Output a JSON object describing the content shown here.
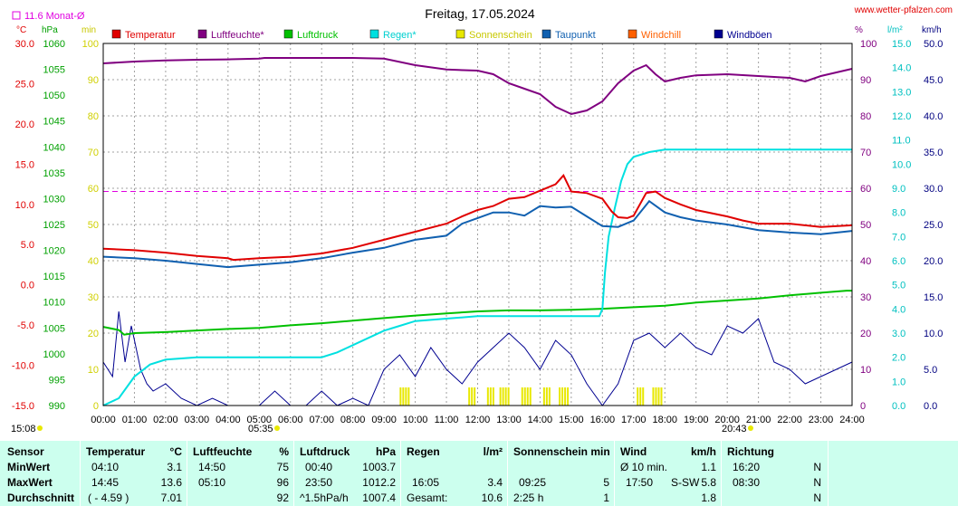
{
  "header": {
    "title": "Freitag, 17.05.2024",
    "site": "www.wetter-pfalzen.com",
    "monthly_avg_label": "11.6 Monat-Ø"
  },
  "axes": {
    "left_units": [
      "°C",
      "hPa",
      "min"
    ],
    "right_units": [
      "%",
      "l/m²",
      "km/h"
    ],
    "temp_ticks": [
      "30.0",
      "25.0",
      "20.0",
      "15.0",
      "10.0",
      "5.0",
      "0.0",
      "-5.0",
      "-10.0",
      "-15.0"
    ],
    "hpa_ticks": [
      "1060",
      "1055",
      "1050",
      "1045",
      "1040",
      "1035",
      "1030",
      "1025",
      "1020",
      "1015",
      "1010",
      "1005",
      "1000",
      "995",
      "990"
    ],
    "min_ticks": [
      "100",
      "90",
      "80",
      "70",
      "60",
      "50",
      "40",
      "30",
      "20",
      "10",
      "0"
    ],
    "pct_ticks": [
      "100",
      "90",
      "80",
      "70",
      "60",
      "50",
      "40",
      "30",
      "20",
      "10",
      "0"
    ],
    "rain_ticks": [
      "15.0",
      "14.0",
      "13.0",
      "12.0",
      "11.0",
      "10.0",
      "9.0",
      "8.0",
      "7.0",
      "6.0",
      "5.0",
      "4.0",
      "3.0",
      "2.0",
      "1.0",
      "0.0"
    ],
    "kmh_ticks": [
      "50.0",
      "45.0",
      "40.0",
      "35.0",
      "30.0",
      "25.0",
      "20.0",
      "15.0",
      "10.0",
      "5.0",
      "0.0"
    ],
    "x_ticks": [
      "00:00",
      "01:00",
      "02:00",
      "03:00",
      "04:00",
      "05:00",
      "06:00",
      "07:00",
      "08:00",
      "09:00",
      "10:00",
      "11:00",
      "12:00",
      "13:00",
      "14:00",
      "15:00",
      "16:00",
      "17:00",
      "18:00",
      "19:00",
      "20:00",
      "21:00",
      "22:00",
      "23:00",
      "24:00"
    ],
    "sunrise": "05:35",
    "sunset": "20:43",
    "time_label": "15:08"
  },
  "legend": [
    {
      "label": "Temperatur",
      "color": "#e00000"
    },
    {
      "label": "Luftfeuchte*",
      "color": "#800080"
    },
    {
      "label": "Luftdruck",
      "color": "#00c000"
    },
    {
      "label": "Regen*",
      "color": "#00e0e0"
    },
    {
      "label": "Sonnenschein",
      "color": "#e8e800"
    },
    {
      "label": "Taupunkt",
      "color": "#1060b0"
    },
    {
      "label": "Windchill",
      "color": "#ff6000"
    },
    {
      "label": "Windböen",
      "color": "#000090"
    }
  ],
  "chart_data": {
    "type": "line",
    "title": "Freitag, 17.05.2024",
    "x_range_hours": [
      0,
      24
    ],
    "temp_range": [
      -15,
      30
    ],
    "humidity_range": [
      0,
      100
    ],
    "pressure_range": [
      990,
      1060
    ],
    "rain_range": [
      0,
      15
    ],
    "wind_range": [
      0,
      50
    ],
    "sunshine_range_min": [
      0,
      100
    ],
    "monthly_avg_temp": 11.6,
    "series": [
      {
        "name": "Temperatur",
        "unit": "°C",
        "color": "#e00000",
        "points": [
          [
            0,
            4.5
          ],
          [
            1,
            4.3
          ],
          [
            2,
            4.0
          ],
          [
            3,
            3.6
          ],
          [
            4,
            3.3
          ],
          [
            4.17,
            3.1
          ],
          [
            5,
            3.3
          ],
          [
            6,
            3.5
          ],
          [
            7,
            3.9
          ],
          [
            8,
            4.6
          ],
          [
            9,
            5.6
          ],
          [
            10,
            6.6
          ],
          [
            11,
            7.6
          ],
          [
            11.5,
            8.5
          ],
          [
            12,
            9.3
          ],
          [
            12.5,
            9.8
          ],
          [
            13,
            10.7
          ],
          [
            13.5,
            10.9
          ],
          [
            14,
            11.7
          ],
          [
            14.5,
            12.5
          ],
          [
            14.75,
            13.6
          ],
          [
            15,
            11.6
          ],
          [
            15.5,
            11.4
          ],
          [
            16,
            10.7
          ],
          [
            16.3,
            9.1
          ],
          [
            16.5,
            8.4
          ],
          [
            16.8,
            8.3
          ],
          [
            17,
            8.6
          ],
          [
            17.4,
            11.4
          ],
          [
            17.7,
            11.6
          ],
          [
            18,
            10.8
          ],
          [
            18.5,
            10.0
          ],
          [
            19,
            9.3
          ],
          [
            20,
            8.5
          ],
          [
            20.5,
            8.0
          ],
          [
            21,
            7.6
          ],
          [
            22,
            7.6
          ],
          [
            23,
            7.2
          ],
          [
            24,
            7.4
          ]
        ]
      },
      {
        "name": "Luftfeuchte*",
        "unit": "%",
        "color": "#800080",
        "points": [
          [
            0,
            94.5
          ],
          [
            1,
            95
          ],
          [
            2,
            95.3
          ],
          [
            3,
            95.5
          ],
          [
            4,
            95.6
          ],
          [
            5,
            95.8
          ],
          [
            5.17,
            96
          ],
          [
            6,
            96
          ],
          [
            7,
            96
          ],
          [
            8,
            96
          ],
          [
            9,
            95.8
          ],
          [
            10,
            94
          ],
          [
            11,
            92.8
          ],
          [
            12,
            92.5
          ],
          [
            12.5,
            91.5
          ],
          [
            13,
            89
          ],
          [
            13.5,
            87.5
          ],
          [
            14,
            86
          ],
          [
            14.5,
            82.5
          ],
          [
            15,
            80.5
          ],
          [
            15.5,
            81.5
          ],
          [
            16,
            84
          ],
          [
            16.5,
            89
          ],
          [
            17,
            92.5
          ],
          [
            17.4,
            94
          ],
          [
            17.7,
            91.5
          ],
          [
            18,
            89.5
          ],
          [
            18.5,
            90.5
          ],
          [
            19,
            91.2
          ],
          [
            20,
            91.5
          ],
          [
            21,
            91
          ],
          [
            22,
            90.5
          ],
          [
            22.5,
            89.5
          ],
          [
            23,
            91
          ],
          [
            24,
            93
          ]
        ]
      },
      {
        "name": "Luftdruck",
        "unit": "hPa",
        "color": "#00c000",
        "points": [
          [
            0,
            1005.2
          ],
          [
            0.5,
            1004.6
          ],
          [
            0.67,
            1003.7
          ],
          [
            1,
            1004.0
          ],
          [
            2,
            1004.2
          ],
          [
            3,
            1004.5
          ],
          [
            4,
            1004.8
          ],
          [
            5,
            1005.0
          ],
          [
            6,
            1005.5
          ],
          [
            7,
            1005.9
          ],
          [
            8,
            1006.4
          ],
          [
            9,
            1006.9
          ],
          [
            10,
            1007.4
          ],
          [
            11,
            1007.8
          ],
          [
            12,
            1008.2
          ],
          [
            13,
            1008.4
          ],
          [
            14,
            1008.4
          ],
          [
            15,
            1008.5
          ],
          [
            16,
            1008.7
          ],
          [
            17,
            1009.0
          ],
          [
            18,
            1009.3
          ],
          [
            19,
            1009.9
          ],
          [
            20,
            1010.3
          ],
          [
            21,
            1010.7
          ],
          [
            22,
            1011.3
          ],
          [
            23,
            1011.8
          ],
          [
            23.83,
            1012.2
          ],
          [
            24,
            1012.2
          ]
        ]
      },
      {
        "name": "Regen*",
        "unit": "l/m²",
        "color": "#00e0e0",
        "points": [
          [
            0,
            0
          ],
          [
            0.5,
            0.3
          ],
          [
            1,
            1.2
          ],
          [
            1.5,
            1.7
          ],
          [
            2,
            1.9
          ],
          [
            3,
            2.0
          ],
          [
            7,
            2.0
          ],
          [
            7.5,
            2.2
          ],
          [
            8,
            2.5
          ],
          [
            8.5,
            2.8
          ],
          [
            9,
            3.1
          ],
          [
            9.5,
            3.3
          ],
          [
            10,
            3.5
          ],
          [
            11,
            3.6
          ],
          [
            12,
            3.7
          ],
          [
            15,
            3.7
          ],
          [
            15.9,
            3.7
          ],
          [
            16,
            4.0
          ],
          [
            16.08,
            5.5
          ],
          [
            16.2,
            7.0
          ],
          [
            16.4,
            8.2
          ],
          [
            16.6,
            9.3
          ],
          [
            16.8,
            10.0
          ],
          [
            17,
            10.3
          ],
          [
            17.5,
            10.5
          ],
          [
            18,
            10.6
          ],
          [
            24,
            10.6
          ]
        ]
      },
      {
        "name": "Taupunkt",
        "unit": "°C",
        "color": "#1060b0",
        "points": [
          [
            0,
            3.5
          ],
          [
            1,
            3.3
          ],
          [
            2,
            3.0
          ],
          [
            3,
            2.6
          ],
          [
            4,
            2.2
          ],
          [
            5,
            2.5
          ],
          [
            6,
            2.8
          ],
          [
            7,
            3.3
          ],
          [
            8,
            4.0
          ],
          [
            9,
            4.6
          ],
          [
            10,
            5.6
          ],
          [
            11,
            6.1
          ],
          [
            11.5,
            7.6
          ],
          [
            12,
            8.3
          ],
          [
            12.5,
            9.0
          ],
          [
            13,
            9.0
          ],
          [
            13.5,
            8.6
          ],
          [
            14,
            9.8
          ],
          [
            14.5,
            9.6
          ],
          [
            15,
            9.7
          ],
          [
            15.5,
            8.5
          ],
          [
            16,
            7.3
          ],
          [
            16.5,
            7.2
          ],
          [
            17,
            8.0
          ],
          [
            17.5,
            10.4
          ],
          [
            18,
            9.0
          ],
          [
            18.5,
            8.4
          ],
          [
            19,
            8.0
          ],
          [
            20,
            7.5
          ],
          [
            21,
            6.8
          ],
          [
            22,
            6.5
          ],
          [
            23,
            6.3
          ],
          [
            24,
            6.7
          ]
        ]
      },
      {
        "name": "Windböen",
        "unit": "km/h",
        "color": "#000090",
        "points": [
          [
            0,
            6
          ],
          [
            0.3,
            4
          ],
          [
            0.5,
            13
          ],
          [
            0.7,
            6
          ],
          [
            0.9,
            11
          ],
          [
            1,
            9
          ],
          [
            1.2,
            5
          ],
          [
            1.4,
            3
          ],
          [
            1.6,
            2
          ],
          [
            2,
            3
          ],
          [
            2.5,
            1
          ],
          [
            3,
            0
          ],
          [
            3.5,
            1
          ],
          [
            4,
            0
          ],
          [
            5,
            0
          ],
          [
            5.5,
            2
          ],
          [
            6,
            0
          ],
          [
            6.5,
            0
          ],
          [
            7,
            2
          ],
          [
            7.5,
            0
          ],
          [
            8,
            1
          ],
          [
            8.5,
            0
          ],
          [
            9,
            5
          ],
          [
            9.5,
            7
          ],
          [
            10,
            4
          ],
          [
            10.5,
            8
          ],
          [
            11,
            5
          ],
          [
            11.5,
            3
          ],
          [
            12,
            6
          ],
          [
            12.5,
            8
          ],
          [
            13,
            10
          ],
          [
            13.5,
            8
          ],
          [
            14,
            5
          ],
          [
            14.5,
            9
          ],
          [
            15,
            7
          ],
          [
            15.5,
            3
          ],
          [
            16,
            0
          ],
          [
            16.5,
            3
          ],
          [
            17,
            9
          ],
          [
            17.5,
            10
          ],
          [
            18,
            8
          ],
          [
            18.5,
            10
          ],
          [
            19,
            8
          ],
          [
            19.5,
            7
          ],
          [
            20,
            11
          ],
          [
            20.5,
            10
          ],
          [
            21,
            12
          ],
          [
            21.5,
            6
          ],
          [
            22,
            5
          ],
          [
            22.5,
            3
          ],
          [
            23,
            4
          ],
          [
            23.5,
            5
          ],
          [
            24,
            6
          ]
        ]
      }
    ],
    "sunshine_intervals": [
      [
        9.5,
        9.8
      ],
      [
        11.7,
        11.9
      ],
      [
        12.3,
        12.5
      ],
      [
        12.7,
        13.0
      ],
      [
        13.4,
        13.7
      ],
      [
        14.1,
        14.3
      ],
      [
        14.6,
        14.9
      ],
      [
        17.1,
        17.3
      ],
      [
        17.6,
        17.9
      ]
    ]
  },
  "stats": {
    "columns": {
      "sensor": {
        "title": "Sensor",
        "rows": [
          "MinWert",
          "MaxWert",
          "Durchschnitt"
        ]
      },
      "temperature": {
        "title": "Temperatur",
        "unit": "°C",
        "times": [
          "04:10",
          "14:45",
          "( - 4.59 )"
        ],
        "values": [
          "3.1",
          "13.6",
          "7.01"
        ]
      },
      "humidity": {
        "title": "Luftfeuchte",
        "unit": "%",
        "times": [
          "14:50",
          "05:10",
          ""
        ],
        "values": [
          "75",
          "96",
          "92"
        ]
      },
      "pressure": {
        "title": "Luftdruck",
        "unit": "hPa",
        "times": [
          "00:40",
          "23:50",
          "^1.5hPa/h"
        ],
        "values": [
          "1003.7",
          "1012.2",
          "1007.4"
        ]
      },
      "rain": {
        "title": "Regen",
        "unit": "l/m²",
        "times": [
          "",
          "16:05",
          "Gesamt:"
        ],
        "values": [
          "",
          "3.4",
          "10.6"
        ]
      },
      "sunshine": {
        "title": "Sonnenschein min",
        "unit": "",
        "times": [
          "",
          "09:25",
          "2:25 h"
        ],
        "values": [
          "",
          "5",
          "1"
        ]
      },
      "wind": {
        "title": "Wind",
        "unit": "km/h",
        "times": [
          "Ø 10 min.",
          "17:50",
          ""
        ],
        "mid": [
          "",
          "S-SW",
          ""
        ],
        "values": [
          "1.1",
          "5.8",
          "1.8"
        ]
      },
      "direction": {
        "title": "Richtung",
        "unit": "",
        "times": [
          "16:20",
          "08:30",
          ""
        ],
        "values": [
          "N",
          "N",
          "N"
        ]
      }
    }
  }
}
